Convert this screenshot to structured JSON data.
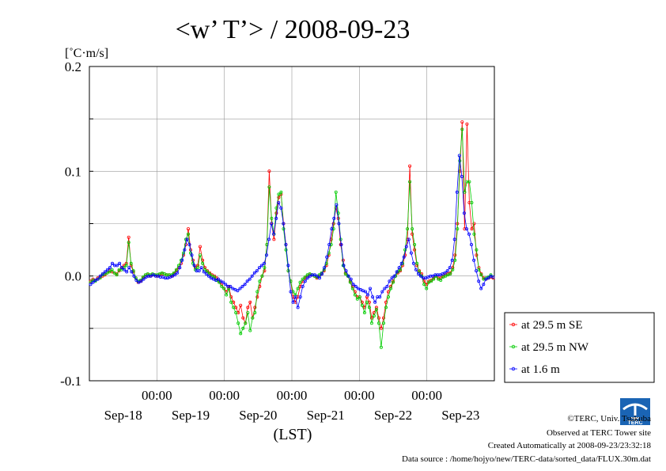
{
  "chart_data": {
    "type": "line",
    "title": "<w’ T’> / 2008-09-23",
    "ylabel": "[˚C·m/s]",
    "xlabel": "(LST)",
    "ylim": [
      -0.1,
      0.2
    ],
    "yticks": [
      "0.2",
      "0.1",
      "0.0",
      "-0.1"
    ],
    "xlim": [
      0,
      6
    ],
    "x_time_labels": [
      "00:00",
      "00:00",
      "00:00",
      "00:00",
      "00:00"
    ],
    "x_date_labels": [
      "Sep-18",
      "Sep-19",
      "Sep-20",
      "Sep-21",
      "Sep-22",
      "Sep-23"
    ],
    "grid": true,
    "legend_position": "right",
    "series": [
      {
        "name": "at 29.5 m SE",
        "color": "#ff0000",
        "values": [
          -0.005,
          -0.003,
          -0.004,
          -0.002,
          -0.001,
          0.0,
          0.001,
          0.003,
          0.005,
          0.004,
          0.003,
          0.002,
          0.005,
          0.008,
          0.01,
          0.012,
          0.037,
          0.01,
          0.004,
          -0.002,
          -0.006,
          -0.005,
          -0.002,
          0.0,
          0.001,
          0.0,
          0.001,
          0.001,
          0.0,
          0.001,
          0.002,
          0.002,
          0.001,
          0.001,
          0.0,
          0.002,
          0.005,
          0.008,
          0.012,
          0.02,
          0.03,
          0.045,
          0.025,
          0.015,
          0.008,
          0.01,
          0.028,
          0.015,
          0.008,
          0.005,
          0.003,
          0.001,
          0.0,
          -0.002,
          -0.005,
          -0.008,
          -0.012,
          -0.015,
          -0.01,
          -0.02,
          -0.025,
          -0.03,
          -0.035,
          -0.028,
          -0.04,
          -0.045,
          -0.03,
          -0.025,
          -0.04,
          -0.03,
          -0.02,
          -0.01,
          0.0,
          0.005,
          0.03,
          0.1,
          0.05,
          0.035,
          0.06,
          0.075,
          0.078,
          0.05,
          0.03,
          0.005,
          -0.005,
          -0.02,
          -0.025,
          -0.02,
          -0.01,
          -0.005,
          -0.002,
          0.0,
          0.001,
          0.001,
          0.0,
          -0.002,
          0.0,
          0.002,
          0.005,
          0.01,
          0.02,
          0.035,
          0.05,
          0.065,
          0.055,
          0.03,
          0.015,
          0.003,
          0.0,
          -0.005,
          -0.01,
          -0.015,
          -0.02,
          -0.02,
          -0.025,
          -0.03,
          -0.02,
          -0.025,
          -0.04,
          -0.035,
          -0.03,
          -0.04,
          -0.05,
          -0.04,
          -0.025,
          -0.015,
          -0.01,
          -0.005,
          0.0,
          0.003,
          0.005,
          0.01,
          0.02,
          0.035,
          0.105,
          0.04,
          0.025,
          0.01,
          0.005,
          0.002,
          -0.005,
          -0.008,
          -0.005,
          -0.004,
          -0.002,
          0.0,
          -0.002,
          -0.002,
          0.0,
          0.001,
          0.002,
          0.003,
          0.008,
          0.02,
          0.05,
          0.1,
          0.147,
          0.045,
          0.145,
          0.07,
          0.045,
          0.05,
          0.02,
          0.008,
          0.002,
          -0.002,
          -0.003,
          -0.002,
          -0.001,
          -0.002
        ]
      },
      {
        "name": "at 29.5 m NW",
        "color": "#00cc00",
        "values": [
          -0.006,
          -0.004,
          -0.005,
          -0.003,
          -0.002,
          0.001,
          0.002,
          0.003,
          0.004,
          0.006,
          0.003,
          0.001,
          0.006,
          0.006,
          0.008,
          0.01,
          0.032,
          0.012,
          0.005,
          -0.002,
          -0.005,
          -0.004,
          -0.001,
          0.001,
          0.002,
          0.001,
          0.002,
          0.001,
          0.001,
          0.002,
          0.003,
          0.002,
          0.001,
          0.001,
          0.001,
          0.003,
          0.006,
          0.01,
          0.015,
          0.022,
          0.035,
          0.04,
          0.022,
          0.012,
          0.006,
          0.008,
          0.02,
          0.012,
          0.006,
          0.004,
          0.002,
          0.0,
          -0.001,
          -0.004,
          -0.006,
          -0.01,
          -0.012,
          -0.018,
          -0.012,
          -0.025,
          -0.03,
          -0.035,
          -0.045,
          -0.055,
          -0.05,
          -0.045,
          -0.035,
          -0.052,
          -0.04,
          -0.035,
          -0.015,
          -0.005,
          0.0,
          0.008,
          0.03,
          0.085,
          0.055,
          0.04,
          0.065,
          0.078,
          0.08,
          0.045,
          0.025,
          0.005,
          -0.005,
          -0.015,
          -0.018,
          -0.012,
          -0.006,
          -0.003,
          -0.001,
          0.001,
          0.002,
          0.001,
          0.0,
          -0.001,
          0.001,
          0.003,
          0.006,
          0.012,
          0.022,
          0.03,
          0.045,
          0.08,
          0.06,
          0.035,
          0.01,
          0.002,
          0.0,
          -0.006,
          -0.012,
          -0.018,
          -0.022,
          -0.02,
          -0.028,
          -0.035,
          -0.025,
          -0.03,
          -0.045,
          -0.038,
          -0.032,
          -0.045,
          -0.068,
          -0.045,
          -0.03,
          -0.02,
          -0.012,
          -0.006,
          0.0,
          0.004,
          0.006,
          0.012,
          0.025,
          0.045,
          0.09,
          0.045,
          0.03,
          0.012,
          0.004,
          0.0,
          -0.008,
          -0.012,
          -0.006,
          -0.005,
          -0.003,
          0.0,
          -0.003,
          -0.004,
          -0.001,
          0.0,
          0.001,
          0.002,
          0.006,
          0.015,
          0.045,
          0.11,
          0.14,
          0.08,
          0.09,
          0.09,
          0.07,
          0.04,
          0.025,
          0.006,
          0.001,
          -0.003,
          -0.002,
          -0.001,
          0.001,
          -0.001
        ]
      },
      {
        "name": "at 1.6 m",
        "color": "#0000ff",
        "values": [
          -0.008,
          -0.006,
          -0.004,
          -0.003,
          0.0,
          0.002,
          0.004,
          0.006,
          0.008,
          0.012,
          0.01,
          0.01,
          0.012,
          0.008,
          0.006,
          0.004,
          0.008,
          0.004,
          0.0,
          -0.004,
          -0.006,
          -0.005,
          -0.003,
          -0.001,
          0.0,
          0.0,
          0.001,
          0.0,
          0.0,
          -0.001,
          -0.001,
          -0.002,
          -0.002,
          -0.001,
          0.0,
          0.001,
          0.003,
          0.008,
          0.015,
          0.025,
          0.035,
          0.03,
          0.02,
          0.01,
          0.005,
          0.005,
          0.008,
          0.004,
          0.002,
          0.0,
          -0.002,
          -0.003,
          -0.004,
          -0.003,
          -0.005,
          -0.006,
          -0.008,
          -0.01,
          -0.01,
          -0.012,
          -0.013,
          -0.014,
          -0.012,
          -0.01,
          -0.008,
          -0.005,
          -0.003,
          0.0,
          0.003,
          0.005,
          0.008,
          0.01,
          0.012,
          0.02,
          0.035,
          0.05,
          0.04,
          0.055,
          0.07,
          0.065,
          0.05,
          0.03,
          0.01,
          -0.015,
          -0.025,
          -0.02,
          -0.03,
          -0.02,
          -0.01,
          -0.005,
          -0.002,
          0.0,
          0.001,
          0.001,
          0.0,
          -0.002,
          0.002,
          0.008,
          0.018,
          0.03,
          0.045,
          0.055,
          0.068,
          0.05,
          0.03,
          0.01,
          0.005,
          0.0,
          -0.003,
          -0.008,
          -0.01,
          -0.012,
          -0.013,
          -0.014,
          -0.015,
          -0.018,
          -0.012,
          -0.02,
          -0.025,
          -0.02,
          -0.02,
          -0.015,
          -0.012,
          -0.01,
          -0.005,
          -0.002,
          0.0,
          0.004,
          0.008,
          0.012,
          0.018,
          0.028,
          0.035,
          0.022,
          0.012,
          0.006,
          0.002,
          0.0,
          -0.002,
          -0.002,
          -0.001,
          0.0,
          0.0,
          0.001,
          0.001,
          0.001,
          0.002,
          0.003,
          0.005,
          0.008,
          0.015,
          0.035,
          0.08,
          0.115,
          0.095,
          0.06,
          0.045,
          0.04,
          0.03,
          0.015,
          0.005,
          -0.005,
          -0.012,
          -0.008,
          -0.003,
          -0.002,
          0.0,
          -0.001
        ]
      }
    ]
  },
  "footer": {
    "copyright": "©TERC, Univ. Tsukuba",
    "observed": "Observed at TERC Tower site",
    "created": "Created Automatically at 2008-09-23/23:32:18",
    "source": "Data source : /home/hojyo/new/TERC-data/sorted_data/FLUX.30m.dat"
  },
  "logo": {
    "text": "TERC",
    "color": "#1a64b4"
  }
}
